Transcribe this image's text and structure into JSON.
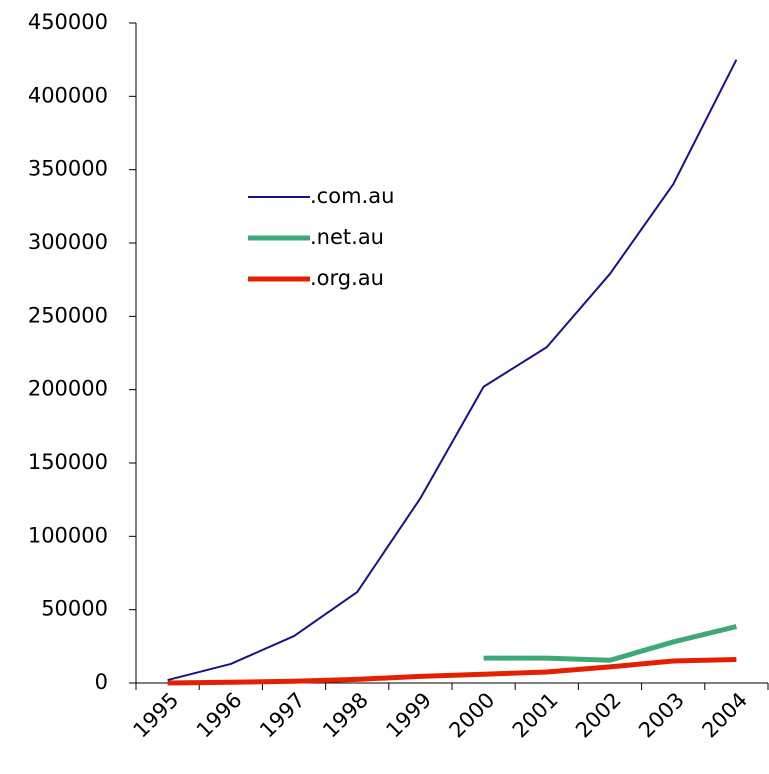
{
  "chart_data": {
    "type": "line",
    "categories": [
      "1995",
      "1996",
      "1997",
      "1998",
      "1999",
      "2000",
      "2001",
      "2002",
      "2003",
      "2004"
    ],
    "series": [
      {
        "name": ".com.au",
        "color": "#141488",
        "values": [
          2000,
          13000,
          32000,
          62000,
          126000,
          202000,
          229000,
          279000,
          340000,
          425000
        ]
      },
      {
        "name": ".net.au",
        "color": "#3fa878",
        "values": [
          null,
          null,
          null,
          null,
          null,
          17000,
          17000,
          15500,
          28000,
          38500
        ]
      },
      {
        "name": ".org.au",
        "color": "#e32000",
        "values": [
          0,
          500,
          1200,
          2500,
          4500,
          6000,
          7500,
          11000,
          15000,
          16000
        ]
      }
    ],
    "ylim": [
      0,
      450000
    ],
    "yticks": [
      0,
      50000,
      100000,
      150000,
      200000,
      250000,
      300000,
      350000,
      400000,
      450000
    ],
    "grid": false,
    "legend": "upper left"
  }
}
